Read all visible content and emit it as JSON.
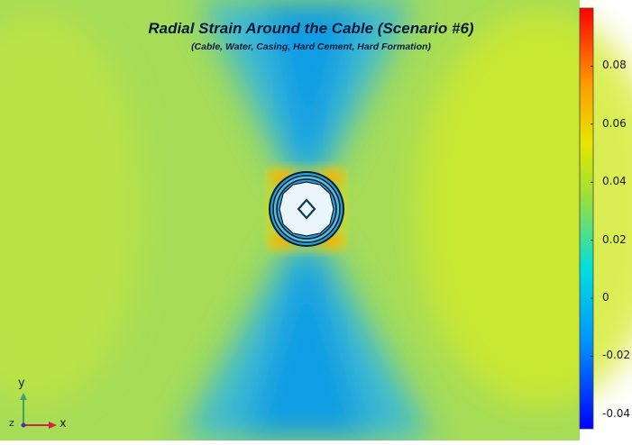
{
  "chart_data": {
    "type": "heatmap",
    "title": "Radial Strain Around the Cable (Scenario #6)",
    "subtitle": "(Cable, Water, Casing, Hard Cement, Hard Formation)",
    "colorbar": {
      "range": [
        -0.045,
        0.1
      ],
      "ticks": [
        0.08,
        0.06,
        0.04,
        0.02,
        0,
        -0.02,
        -0.04
      ],
      "tick_labels": [
        "0.08",
        "0.06",
        "0.04",
        "0.02",
        "0",
        "-0.02",
        "-0.04"
      ],
      "colors": [
        "#0000ff",
        "#00a0ff",
        "#00e6e6",
        "#e6e600",
        "#ff9900",
        "#ff0000"
      ]
    },
    "field": {
      "background_left_right_value": 0.04,
      "top_bottom_lobe_value": 0,
      "near_cable_peak_value": 0.06,
      "description_pattern": "hourglass"
    },
    "axes_triad": {
      "x_label": "x",
      "y_label": "y",
      "z_label": "z"
    }
  }
}
